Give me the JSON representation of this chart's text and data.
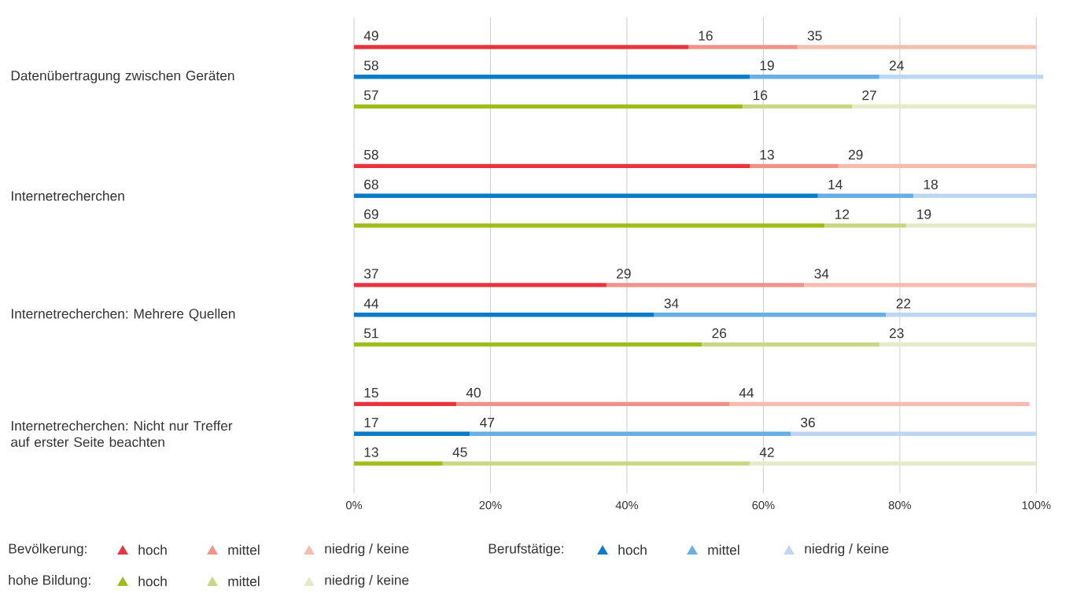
{
  "chart_data": {
    "type": "bar",
    "orientation": "horizontal",
    "stacked": true,
    "data_labels": true,
    "grid": "x",
    "legend": "bottom",
    "categories": [
      null,
      "Datenübertragung zwischen Geräten",
      null,
      null,
      "Internetrecherchen",
      null,
      null,
      "Internetrecherchen: Mehrere Quellen",
      null,
      null,
      "Internetrecherchen: Nicht nur Treffer auf erster Seite beachten",
      null
    ],
    "xlim": [
      0,
      101
    ],
    "xticks": [
      {
        "value": 0,
        "label": "0%"
      },
      {
        "value": 20,
        "label": "20%"
      },
      {
        "value": 40,
        "label": "40%"
      },
      {
        "value": 60,
        "label": "60%"
      },
      {
        "value": 80,
        "label": "80%"
      },
      {
        "value": 100,
        "label": "100%"
      }
    ],
    "annotations": [
      "Bevölkerung:",
      "Berufstätige:",
      "hohe Bildung:"
    ],
    "series": [
      {
        "name": "hoch",
        "color": "#e8343f",
        "values": [
          49,
          null,
          null,
          58,
          null,
          null,
          37,
          null,
          null,
          15,
          null,
          null
        ]
      },
      {
        "name": "mittel",
        "color": "#f0928a",
        "values": [
          16,
          null,
          null,
          13,
          null,
          null,
          29,
          null,
          null,
          40,
          null,
          null
        ]
      },
      {
        "name": "niedrig / keine",
        "color": "#f6bcb0",
        "values": [
          35,
          null,
          null,
          29,
          null,
          null,
          34,
          null,
          null,
          44,
          null,
          null
        ]
      },
      {
        "name": "hoch",
        "color": "#0a7bc8",
        "values": [
          null,
          58,
          null,
          null,
          68,
          null,
          null,
          44,
          null,
          null,
          17,
          null
        ]
      },
      {
        "name": "mittel",
        "color": "#6aafe3",
        "values": [
          null,
          19,
          null,
          null,
          14,
          null,
          null,
          34,
          null,
          null,
          47,
          null
        ]
      },
      {
        "name": "niedrig / keine",
        "color": "#bdd7f2",
        "values": [
          null,
          24,
          null,
          null,
          18,
          null,
          null,
          22,
          null,
          null,
          36,
          null
        ]
      },
      {
        "name": "hoch",
        "color": "#9dbe19",
        "values": [
          null,
          null,
          57,
          null,
          null,
          69,
          null,
          null,
          51,
          null,
          null,
          13
        ]
      },
      {
        "name": "mittel",
        "color": "#c8d784",
        "values": [
          null,
          null,
          16,
          null,
          null,
          12,
          null,
          null,
          26,
          null,
          null,
          45
        ]
      },
      {
        "name": "niedrig / keine",
        "color": "#e3ebc8",
        "values": [
          null,
          null,
          27,
          null,
          null,
          19,
          null,
          null,
          23,
          null,
          null,
          42
        ]
      }
    ]
  }
}
